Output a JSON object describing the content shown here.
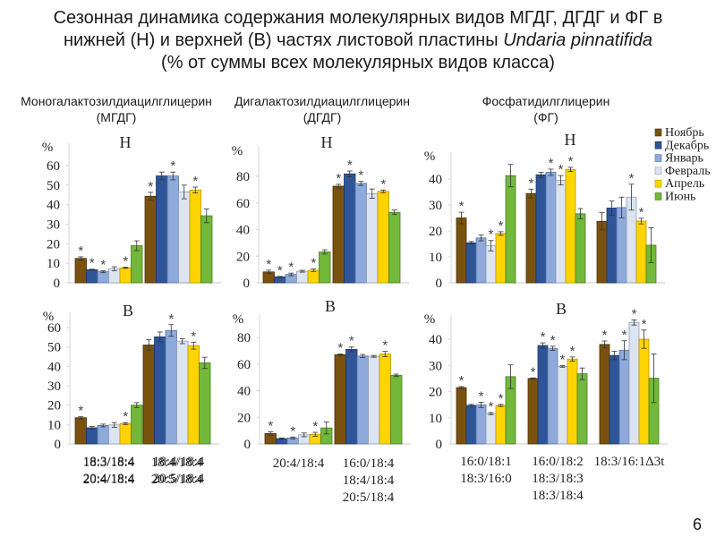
{
  "title": {
    "line1": "Сезонная динамика содержания молекулярных видов МГДГ, ДГДГ и ФГ в",
    "line2_pre": "нижней (Н) и верхней (В) частях листовой пластины ",
    "line2_species": "Undaria pinnatifida",
    "line3": "(% от суммы всех молекулярных видов класса)"
  },
  "panels": [
    {
      "name": "Моногалактозилдиацилглицерин",
      "abbr": "(МГДГ)"
    },
    {
      "name": "Дигалактозилдиацилглицерин",
      "abbr": "(ДГДГ)"
    },
    {
      "name": "Фосфатидилглицерин",
      "abbr": "(ФГ)"
    }
  ],
  "page_number": "6",
  "chart_data": {
    "type": "bar",
    "ylabel": "%",
    "legend": {
      "placement": "top-right",
      "entries": [
        {
          "label": "Ноябрь",
          "color": "#7a5210"
        },
        {
          "label": "Декабрь",
          "color": "#2e5597"
        },
        {
          "label": "Январь",
          "color": "#8eaadb"
        },
        {
          "label": "Февраль",
          "color": "#dce4f2"
        },
        {
          "label": "Апрель",
          "color": "#ffd400"
        },
        {
          "label": "Июнь",
          "color": "#72b83a"
        }
      ]
    },
    "charts": [
      {
        "id": "mgdg-lower",
        "subtitle": "Н",
        "ylim": [
          0,
          60
        ],
        "yticks": [
          0,
          10,
          20,
          30,
          40,
          50,
          60
        ],
        "categories": [
          [
            "18:3/18:4",
            "20:4/18:4"
          ],
          [
            "18:4/18:4",
            "20:5/18:4"
          ]
        ],
        "groups": [
          {
            "values": [
              12.5,
              6.7,
              5.7,
              7.2,
              7.7,
              19.0
            ],
            "errors": [
              0.8,
              0.3,
              0.5,
              1.0,
              0.3,
              2.5
            ],
            "significant": [
              true,
              true,
              true,
              false,
              true,
              false
            ]
          },
          {
            "values": [
              44.3,
              54.7,
              54.7,
              46.5,
              47.5,
              34.3
            ],
            "errors": [
              2.0,
              2.0,
              2.0,
              3.5,
              1.5,
              3.5
            ],
            "significant": [
              true,
              false,
              true,
              false,
              true,
              false
            ]
          }
        ]
      },
      {
        "id": "dgdg-lower",
        "subtitle": "Н",
        "ylim": [
          0,
          90
        ],
        "yticks": [
          0,
          20,
          40,
          60,
          80
        ],
        "categories": [
          [
            ""
          ],
          [
            ""
          ]
        ],
        "groups": [
          {
            "values": [
              8.2,
              4.5,
              6.3,
              8.7,
              9.4,
              23.2
            ],
            "errors": [
              1.3,
              0.3,
              1.0,
              0.7,
              1.0,
              1.6
            ],
            "significant": [
              true,
              true,
              true,
              false,
              true,
              false
            ]
          },
          {
            "values": [
              72.6,
              81.8,
              74.7,
              67.0,
              68.7,
              53.0
            ],
            "errors": [
              1.4,
              2.2,
              1.5,
              3.5,
              1.0,
              1.7
            ],
            "significant": [
              true,
              true,
              true,
              false,
              true,
              false
            ]
          }
        ]
      },
      {
        "id": "pg-lower",
        "subtitle": "Н",
        "ylim": [
          0,
          45
        ],
        "yticks": [
          0,
          10,
          20,
          30,
          40
        ],
        "categories": [
          [
            ""
          ],
          [
            ""
          ],
          [
            ""
          ]
        ],
        "groups": [
          {
            "values": [
              25.0,
              15.4,
              17.3,
              14.3,
              19.0,
              41.3
            ],
            "errors": [
              2.2,
              0.5,
              1.1,
              2.0,
              0.7,
              4.3
            ],
            "significant": [
              true,
              false,
              false,
              true,
              true,
              false
            ]
          },
          {
            "values": [
              34.4,
              41.6,
              42.6,
              39.5,
              43.7,
              26.6
            ],
            "errors": [
              1.7,
              1.0,
              1.2,
              1.8,
              0.8,
              2.0
            ],
            "significant": [
              true,
              false,
              true,
              true,
              true,
              false
            ]
          },
          {
            "values": [
              23.7,
              28.8,
              29.0,
              33.0,
              23.8,
              14.5
            ],
            "errors": [
              3.3,
              2.7,
              4.0,
              5.0,
              1.1,
              6.7
            ],
            "significant": [
              false,
              false,
              false,
              true,
              true,
              false
            ]
          }
        ]
      },
      {
        "id": "mgdg-upper",
        "subtitle": "В",
        "ylim": [
          0,
          65
        ],
        "yticks": [
          0,
          10,
          20,
          30,
          40,
          50,
          60
        ],
        "categories": [
          [
            "18:3/18:4",
            "20:4/18:4"
          ],
          [
            "18:4/18:4",
            "20:5/18:4"
          ]
        ],
        "groups": [
          {
            "values": [
              13.5,
              8.3,
              9.5,
              9.8,
              10.5,
              20.0
            ],
            "errors": [
              0.5,
              0.7,
              0.7,
              1.2,
              0.5,
              1.3
            ],
            "significant": [
              true,
              false,
              false,
              false,
              true,
              false
            ]
          },
          {
            "values": [
              51.0,
              55.2,
              58.5,
              53.0,
              50.7,
              41.8
            ],
            "errors": [
              2.7,
              2.5,
              3.0,
              1.3,
              1.8,
              2.9
            ],
            "significant": [
              false,
              false,
              true,
              false,
              true,
              false
            ]
          }
        ]
      },
      {
        "id": "dgdg-upper",
        "subtitle": "В",
        "ylim": [
          0,
          90
        ],
        "yticks": [
          0,
          20,
          40,
          60,
          80
        ],
        "categories": [
          [
            "20:4/18:4"
          ],
          [
            "16:0/18:4",
            "18:4/18:4",
            "20:5/18:4"
          ]
        ],
        "groups": [
          {
            "values": [
              7.8,
              4.0,
              4.5,
              6.8,
              7.2,
              12.0
            ],
            "errors": [
              1.3,
              0.5,
              0.7,
              1.4,
              1.5,
              4.5
            ],
            "significant": [
              true,
              false,
              true,
              false,
              true,
              false
            ]
          },
          {
            "values": [
              67.0,
              71.0,
              66.0,
              65.8,
              67.5,
              51.5
            ],
            "errors": [
              0.6,
              1.8,
              1.2,
              0.7,
              2.0,
              0.9
            ],
            "significant": [
              true,
              true,
              false,
              false,
              true,
              false
            ]
          }
        ]
      },
      {
        "id": "pg-upper",
        "subtitle": "В",
        "ylim": [
          0,
          48
        ],
        "yticks": [
          0,
          10,
          20,
          30,
          40
        ],
        "categories": [
          [
            "16:0/18:1",
            "18:3/16:0"
          ],
          [
            "16:0/18:2",
            "18:3/18:3",
            "18:3/18:4"
          ],
          [
            "18:3/16:1Δ3t"
          ]
        ],
        "groups": [
          {
            "values": [
              21.5,
              14.7,
              14.9,
              11.6,
              14.7,
              25.7
            ],
            "errors": [
              0.4,
              0.4,
              1.0,
              0.4,
              0.4,
              4.5
            ],
            "significant": [
              true,
              false,
              true,
              true,
              true,
              false
            ]
          },
          {
            "values": [
              25.0,
              37.6,
              36.5,
              29.6,
              32.4,
              26.8
            ],
            "errors": [
              0.2,
              1.0,
              0.8,
              0.3,
              0.8,
              2.2
            ],
            "significant": [
              true,
              true,
              true,
              true,
              true,
              false
            ]
          },
          {
            "values": [
              38.0,
              33.8,
              35.8,
              46.4,
              40.0,
              25.1
            ],
            "errors": [
              1.3,
              1.6,
              3.6,
              1.0,
              3.5,
              9.3
            ],
            "significant": [
              true,
              false,
              true,
              true,
              true,
              false
            ]
          }
        ]
      }
    ]
  }
}
